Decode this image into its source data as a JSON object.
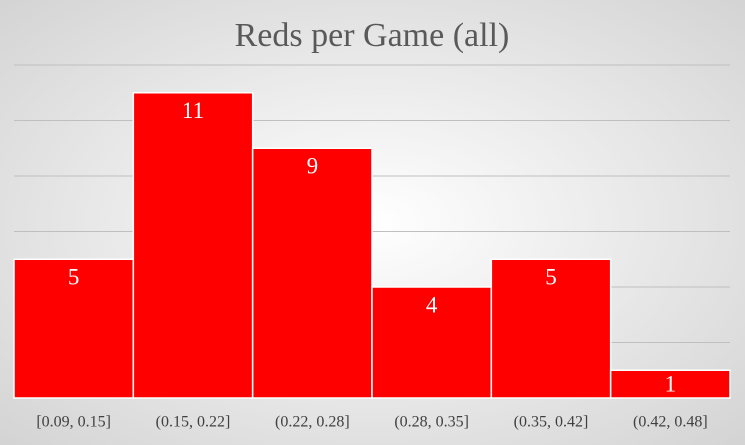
{
  "chart_data": {
    "type": "bar",
    "title": "Reds per Game (all)",
    "categories": [
      "[0.09, 0.15]",
      "(0.15, 0.22]",
      "(0.22, 0.28]",
      "(0.28, 0.35]",
      "(0.35, 0.42]",
      "(0.42, 0.48]"
    ],
    "values": [
      5,
      11,
      9,
      4,
      5,
      1
    ],
    "color": "#ff0000",
    "ylim": [
      0,
      12
    ],
    "yticks": [
      0,
      2,
      4,
      6,
      8,
      10,
      12
    ],
    "grid": true,
    "data_labels": true
  }
}
